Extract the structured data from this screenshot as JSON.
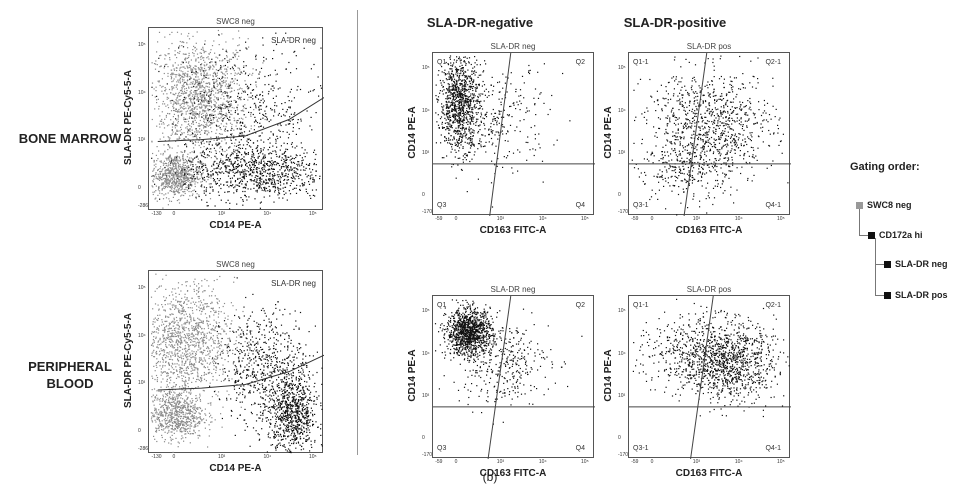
{
  "rows": [
    "BONE MARROW",
    "PERIPHERAL BLOOD"
  ],
  "columns": [
    "SLA-DR-negative",
    "SLA-DR-positive"
  ],
  "caption": "(b)",
  "gating": {
    "title": "Gating order:",
    "items": [
      {
        "label": "SWC8 neg",
        "color": "#999999",
        "level": 0
      },
      {
        "label": "CD172a hi",
        "color": "#111111",
        "level": 1
      },
      {
        "label": "SLA-DR neg",
        "color": "#111111",
        "level": 2
      },
      {
        "label": "SLA-DR pos",
        "color": "#111111",
        "level": 2
      }
    ]
  },
  "chart_data": [
    {
      "type": "scatter",
      "id": "bm-swc8",
      "title": "SWC8 neg",
      "gate_label": "SLA-DR neg",
      "xlabel": "CD14 PE-A",
      "ylabel": "SLA-DR PE-Cy5-5-A",
      "xticks": [
        "-130",
        "0",
        "10³",
        "10⁴",
        "10⁵"
      ],
      "yticks": [
        "-286",
        "0",
        "10³",
        "10⁴",
        "10⁵"
      ],
      "populations": [
        {
          "name": "grey",
          "color": "#8a8a8a",
          "cx": 0.28,
          "cy": 0.62,
          "sx": 0.14,
          "sy": 0.16,
          "n": 1400
        },
        {
          "name": "grey",
          "color": "#8a8a8a",
          "cx": 0.15,
          "cy": 0.2,
          "sx": 0.07,
          "sy": 0.06,
          "n": 700
        },
        {
          "name": "black",
          "color": "#111111",
          "cx": 0.6,
          "cy": 0.22,
          "sx": 0.2,
          "sy": 0.08,
          "n": 900
        },
        {
          "name": "black",
          "color": "#111111",
          "cx": 0.55,
          "cy": 0.55,
          "sx": 0.22,
          "sy": 0.18,
          "n": 500
        }
      ],
      "gate_curve": [
        [
          0.05,
          0.38
        ],
        [
          0.3,
          0.39
        ],
        [
          0.55,
          0.41
        ],
        [
          0.8,
          0.5
        ],
        [
          1.0,
          0.62
        ]
      ]
    },
    {
      "type": "scatter",
      "id": "bm-dr-neg",
      "title": "SLA-DR neg",
      "xlabel": "CD163 FITC-A",
      "ylabel": "CD14 PE-A",
      "quadrants": [
        "Q1",
        "Q2",
        "Q3",
        "Q4"
      ],
      "xticks": [
        "-59",
        "0",
        "10³",
        "10⁴",
        "10⁵"
      ],
      "yticks": [
        "-170",
        "0",
        "10³",
        "10⁴",
        "10⁵"
      ],
      "populations": [
        {
          "name": "black",
          "color": "#111111",
          "cx": 0.16,
          "cy": 0.7,
          "sx": 0.06,
          "sy": 0.14,
          "n": 900
        },
        {
          "name": "black",
          "color": "#111111",
          "cx": 0.35,
          "cy": 0.6,
          "sx": 0.18,
          "sy": 0.16,
          "n": 350
        }
      ],
      "vline": [
        [
          0.35,
          0.0
        ],
        [
          0.48,
          1.0
        ]
      ],
      "hline": 0.32
    },
    {
      "type": "scatter",
      "id": "bm-dr-pos",
      "title": "SLA-DR pos",
      "xlabel": "CD163 FITC-A",
      "ylabel": "CD14 PE-A",
      "quadrants": [
        "Q1-1",
        "Q2-1",
        "Q3-1",
        "Q4-1"
      ],
      "xticks": [
        "-59",
        "0",
        "10³",
        "10⁴",
        "10⁵"
      ],
      "yticks": [
        "-170",
        "0",
        "10³",
        "10⁴",
        "10⁵"
      ],
      "populations": [
        {
          "name": "black",
          "color": "#111111",
          "cx": 0.5,
          "cy": 0.56,
          "sx": 0.2,
          "sy": 0.17,
          "n": 900
        },
        {
          "name": "black",
          "color": "#111111",
          "cx": 0.35,
          "cy": 0.3,
          "sx": 0.15,
          "sy": 0.12,
          "n": 250
        }
      ],
      "vline": [
        [
          0.34,
          0.0
        ],
        [
          0.48,
          1.0
        ]
      ],
      "hline": 0.32
    },
    {
      "type": "scatter",
      "id": "pb-swc8",
      "title": "SWC8 neg",
      "gate_label": "SLA-DR neg",
      "xlabel": "CD14 PE-A",
      "ylabel": "SLA-DR PE-Cy5-5-A",
      "xticks": [
        "-130",
        "0",
        "10³",
        "10⁴",
        "10⁵"
      ],
      "yticks": [
        "-286",
        "0",
        "10³",
        "10⁴",
        "10⁵"
      ],
      "populations": [
        {
          "name": "grey",
          "color": "#8a8a8a",
          "cx": 0.2,
          "cy": 0.62,
          "sx": 0.14,
          "sy": 0.16,
          "n": 1300
        },
        {
          "name": "grey",
          "color": "#8a8a8a",
          "cx": 0.15,
          "cy": 0.22,
          "sx": 0.08,
          "sy": 0.07,
          "n": 700
        },
        {
          "name": "black",
          "color": "#111111",
          "cx": 0.82,
          "cy": 0.22,
          "sx": 0.07,
          "sy": 0.12,
          "n": 800
        },
        {
          "name": "black",
          "color": "#111111",
          "cx": 0.65,
          "cy": 0.48,
          "sx": 0.12,
          "sy": 0.16,
          "n": 600
        }
      ],
      "gate_curve": [
        [
          0.05,
          0.35
        ],
        [
          0.3,
          0.36
        ],
        [
          0.55,
          0.38
        ],
        [
          0.8,
          0.45
        ],
        [
          1.0,
          0.54
        ]
      ]
    },
    {
      "type": "scatter",
      "id": "pb-dr-neg",
      "title": "SLA-DR neg",
      "xlabel": "CD163 FITC-A",
      "ylabel": "CD14 PE-A",
      "quadrants": [
        "Q1",
        "Q2",
        "Q3",
        "Q4"
      ],
      "xticks": [
        "-59",
        "0",
        "10³",
        "10⁴",
        "10⁵"
      ],
      "yticks": [
        "-170",
        "0",
        "10³",
        "10⁴",
        "10⁵"
      ],
      "populations": [
        {
          "name": "black",
          "color": "#111111",
          "cx": 0.22,
          "cy": 0.78,
          "sx": 0.07,
          "sy": 0.07,
          "n": 1100
        },
        {
          "name": "black",
          "color": "#111111",
          "cx": 0.42,
          "cy": 0.6,
          "sx": 0.15,
          "sy": 0.13,
          "n": 350
        }
      ],
      "vline": [
        [
          0.34,
          0.0
        ],
        [
          0.48,
          1.0
        ]
      ],
      "hline": 0.32
    },
    {
      "type": "scatter",
      "id": "pb-dr-pos",
      "title": "SLA-DR pos",
      "xlabel": "CD163 FITC-A",
      "ylabel": "CD14 PE-A",
      "quadrants": [
        "Q1-1",
        "Q2-1",
        "Q3-1",
        "Q4-1"
      ],
      "xticks": [
        "-59",
        "0",
        "10³",
        "10⁴",
        "10⁵"
      ],
      "yticks": [
        "-170",
        "0",
        "10³",
        "10⁴",
        "10⁵"
      ],
      "populations": [
        {
          "name": "black",
          "color": "#111111",
          "cx": 0.62,
          "cy": 0.6,
          "sx": 0.14,
          "sy": 0.12,
          "n": 1000
        },
        {
          "name": "black",
          "color": "#111111",
          "cx": 0.35,
          "cy": 0.65,
          "sx": 0.15,
          "sy": 0.12,
          "n": 350
        }
      ],
      "vline": [
        [
          0.38,
          0.0
        ],
        [
          0.52,
          1.0
        ]
      ],
      "hline": 0.32
    }
  ]
}
